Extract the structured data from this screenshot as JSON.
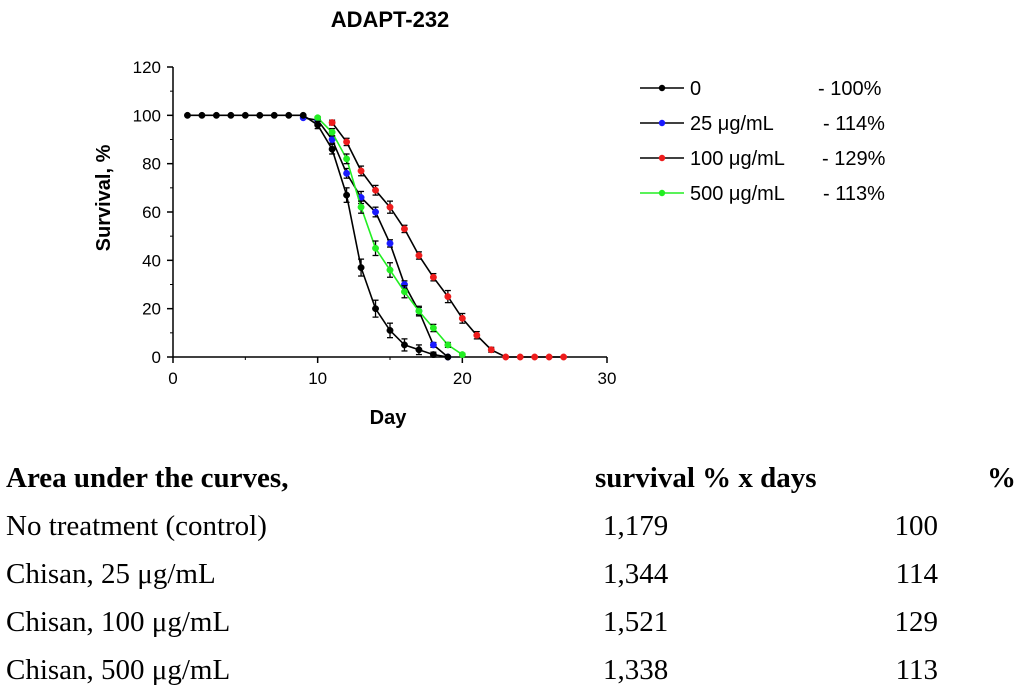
{
  "chart_data": {
    "type": "line",
    "title": "ADAPT-232",
    "xlabel": "Day",
    "ylabel": "Survival, %",
    "xlim": [
      0,
      30
    ],
    "ylim": [
      0,
      120
    ],
    "xticks": [
      "0",
      "10",
      "20",
      "30"
    ],
    "yticks": [
      "0",
      "20",
      "40",
      "60",
      "80",
      "100",
      "120"
    ],
    "legend_position": "right",
    "series": [
      {
        "name": "0",
        "note": "- 100%",
        "color": "#000000",
        "x": [
          1,
          2,
          3,
          4,
          5,
          6,
          7,
          8,
          9,
          10,
          11,
          12,
          13,
          14,
          15,
          16,
          17,
          18,
          19
        ],
        "y": [
          100,
          100,
          100,
          100,
          100,
          100,
          100,
          100,
          100,
          96,
          86,
          67,
          37,
          20,
          11,
          5,
          3,
          1,
          0
        ],
        "err": [
          0,
          0,
          0,
          0,
          0,
          0,
          0,
          0,
          0,
          1.5,
          2,
          3,
          3.5,
          3.5,
          3,
          2.5,
          2,
          1,
          0
        ]
      },
      {
        "name": "25 μg/mL",
        "note": "- 114%",
        "color": "#1a1aff",
        "x": [
          9,
          10,
          11,
          12,
          13,
          14,
          15,
          16,
          17,
          18,
          19
        ],
        "y": [
          99,
          98,
          90,
          76,
          66,
          60,
          47,
          30,
          19,
          5,
          0
        ],
        "err": [
          0,
          0.5,
          1.5,
          2,
          2.5,
          2,
          1.5,
          1.5,
          1.5,
          1,
          0
        ]
      },
      {
        "name": "100 μg/mL",
        "note": "- 129%",
        "color": "#ee1c1c",
        "x": [
          11,
          12,
          13,
          14,
          15,
          16,
          17,
          18,
          19,
          20,
          21,
          22,
          23,
          24,
          25,
          26,
          27
        ],
        "y": [
          97,
          89,
          77,
          69,
          62,
          53,
          42,
          33,
          25,
          16,
          9,
          3,
          0,
          0,
          0,
          0,
          0
        ],
        "err": [
          1,
          1.5,
          2,
          2,
          2.5,
          1.5,
          1.5,
          1.5,
          2.5,
          2,
          1.5,
          1,
          0,
          0,
          0,
          0,
          0
        ]
      },
      {
        "name": "500 μg/mL",
        "note": "- 113%",
        "color": "#22ee22",
        "x": [
          10,
          11,
          12,
          13,
          14,
          15,
          16,
          17,
          18,
          19,
          20
        ],
        "y": [
          99,
          93,
          82,
          62,
          45,
          36,
          27,
          19,
          12,
          5,
          1
        ],
        "err": [
          0.5,
          1.5,
          2,
          2.5,
          3,
          3,
          2.5,
          2,
          1.5,
          1,
          0.5
        ]
      }
    ]
  },
  "table": {
    "header": {
      "col0": "Area under the curves,",
      "col1": "survival % x days",
      "col2": "%"
    },
    "rows": [
      {
        "label": "No treatment (control)",
        "auc": "1,179",
        "pct": "100"
      },
      {
        "label": "Chisan, 25 μg/mL",
        "auc": "1,344",
        "pct": "114"
      },
      {
        "label": "Chisan, 100 μg/mL",
        "auc": "1,521",
        "pct": "129"
      },
      {
        "label": "Chisan, 500 μg/mL",
        "auc": "1,338",
        "pct": "113"
      }
    ]
  }
}
